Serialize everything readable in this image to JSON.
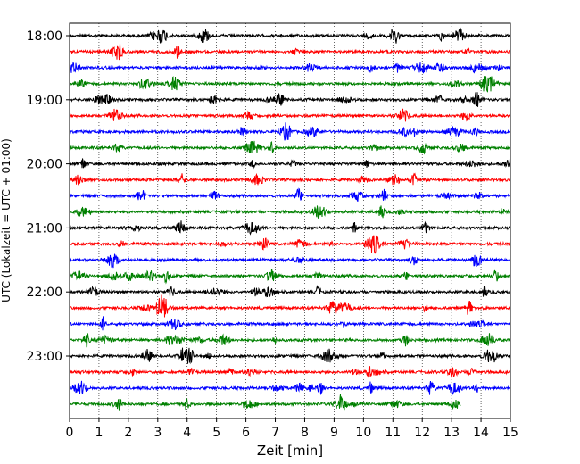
{
  "chart_data": {
    "type": "line",
    "title": "",
    "xlabel": "Zeit  [min]",
    "ylabel": "UTC (Lokalzeit = UTC + 01:00)",
    "xlim": [
      0,
      15
    ],
    "x_ticks": [
      "0",
      "1",
      "2",
      "3",
      "4",
      "5",
      "6",
      "7",
      "8",
      "9",
      "10",
      "11",
      "12",
      "13",
      "14",
      "15"
    ],
    "y_tick_labels": [
      "18:00",
      "19:00",
      "20:00",
      "21:00",
      "22:00",
      "23:00"
    ],
    "grid": "vertical-dotted",
    "trace_colors": [
      "#000000",
      "#ff0000",
      "#0000ff",
      "#008000"
    ],
    "traces": [
      {
        "start": "18:00",
        "end_min": 15
      },
      {
        "start": "18:15",
        "end_min": 15
      },
      {
        "start": "18:30",
        "end_min": 15
      },
      {
        "start": "18:45",
        "end_min": 15
      },
      {
        "start": "19:00",
        "end_min": 15
      },
      {
        "start": "19:15",
        "end_min": 15
      },
      {
        "start": "19:30",
        "end_min": 15
      },
      {
        "start": "19:45",
        "end_min": 15
      },
      {
        "start": "20:00",
        "end_min": 15
      },
      {
        "start": "20:15",
        "end_min": 15
      },
      {
        "start": "20:30",
        "end_min": 15
      },
      {
        "start": "20:45",
        "end_min": 15
      },
      {
        "start": "21:00",
        "end_min": 15
      },
      {
        "start": "21:15",
        "end_min": 15
      },
      {
        "start": "21:30",
        "end_min": 15
      },
      {
        "start": "21:45",
        "end_min": 15
      },
      {
        "start": "22:00",
        "end_min": 15
      },
      {
        "start": "22:15",
        "end_min": 15
      },
      {
        "start": "22:30",
        "end_min": 15
      },
      {
        "start": "22:45",
        "end_min": 15
      },
      {
        "start": "23:00",
        "end_min": 15
      },
      {
        "start": "23:15",
        "end_min": 15
      },
      {
        "start": "23:30",
        "end_min": 15
      },
      {
        "start": "23:45",
        "end_min": 13.3
      }
    ]
  }
}
